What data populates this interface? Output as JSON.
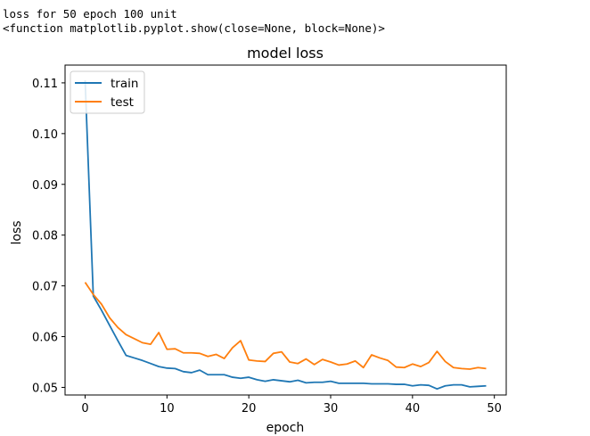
{
  "output": {
    "line1": "loss for 50 epoch 100 unit",
    "line2": "<function matplotlib.pyplot.show(close=None, block=None)>"
  },
  "colors": {
    "train": "#1f77b4",
    "test": "#ff7f0e"
  },
  "chart_data": {
    "type": "line",
    "title": "model loss",
    "xlabel": "epoch",
    "ylabel": "loss",
    "xlim": [
      -2.45,
      51.45
    ],
    "ylim": [
      0.0485,
      0.1135
    ],
    "xticks": [
      0,
      10,
      20,
      30,
      40,
      50
    ],
    "yticks": [
      0.05,
      0.06,
      0.07,
      0.08,
      0.09,
      0.1,
      0.11
    ],
    "ytick_labels": [
      "0.05",
      "0.06",
      "0.07",
      "0.08",
      "0.09",
      "0.10",
      "0.11"
    ],
    "legend_location": "upper-left",
    "grid": false,
    "x": [
      0,
      1,
      2,
      3,
      4,
      5,
      6,
      7,
      8,
      9,
      10,
      11,
      12,
      13,
      14,
      15,
      16,
      17,
      18,
      19,
      20,
      21,
      22,
      23,
      24,
      25,
      26,
      27,
      28,
      29,
      30,
      31,
      32,
      33,
      34,
      35,
      36,
      37,
      38,
      39,
      40,
      41,
      42,
      43,
      44,
      45,
      46,
      47,
      48,
      49
    ],
    "series": [
      {
        "name": "train",
        "values": [
          0.1105,
          0.068,
          0.0652,
          0.0622,
          0.0592,
          0.0563,
          0.0558,
          0.0553,
          0.0547,
          0.0541,
          0.0538,
          0.0537,
          0.0531,
          0.0529,
          0.0534,
          0.0525,
          0.0525,
          0.0525,
          0.052,
          0.0518,
          0.052,
          0.0515,
          0.0512,
          0.0515,
          0.0513,
          0.0511,
          0.0514,
          0.0509,
          0.051,
          0.051,
          0.0512,
          0.0508,
          0.0508,
          0.0508,
          0.0508,
          0.0507,
          0.0507,
          0.0507,
          0.0506,
          0.0506,
          0.0503,
          0.0505,
          0.0504,
          0.0497,
          0.0503,
          0.0505,
          0.0505,
          0.0501,
          0.0502,
          0.0503
        ]
      },
      {
        "name": "test",
        "values": [
          0.0707,
          0.0683,
          0.0664,
          0.0637,
          0.0618,
          0.0604,
          0.0596,
          0.0588,
          0.0585,
          0.0608,
          0.0575,
          0.0576,
          0.0568,
          0.0568,
          0.0567,
          0.0561,
          0.0565,
          0.0557,
          0.0578,
          0.0592,
          0.0554,
          0.0552,
          0.0551,
          0.0567,
          0.057,
          0.055,
          0.0547,
          0.0556,
          0.0545,
          0.0555,
          0.055,
          0.0544,
          0.0546,
          0.0552,
          0.0539,
          0.0564,
          0.0558,
          0.0553,
          0.054,
          0.0539,
          0.0546,
          0.0541,
          0.0549,
          0.0571,
          0.0551,
          0.0539,
          0.0537,
          0.0536,
          0.0539,
          0.0537
        ]
      }
    ]
  }
}
